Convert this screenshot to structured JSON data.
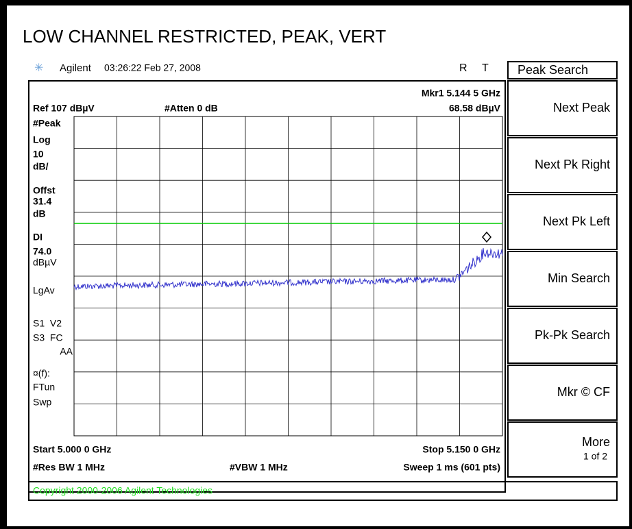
{
  "title": "LOW CHANNEL RESTRICTED, PEAK, VERT",
  "status": {
    "brand": "Agilent",
    "timestamp": "03:26:22  Feb 27, 2008",
    "r": "R",
    "t": "T"
  },
  "header": {
    "marker": "Mkr1  5.144 5 GHz",
    "ref": "Ref 107 dBµV",
    "atten": "#Atten 0 dB",
    "marker_level": "68.58 dBµV"
  },
  "side_labels": [
    "#Peak",
    "Log",
    "10",
    "dB/",
    "Offst",
    "31.4",
    "dB",
    "DI",
    "74.0",
    "dBµV",
    "LgAv",
    "S1  V2",
    "S3  FC",
    "AA",
    "¤(f):",
    "FTun",
    "Swp"
  ],
  "footer": {
    "start": "Start 5.000 0 GHz",
    "stop": "Stop 5.150 0 GHz",
    "rbw": "#Res BW 1 MHz",
    "vbw": "#VBW 1 MHz",
    "sweep": "Sweep 1 ms (601 pts)"
  },
  "softkeys": {
    "title": "Peak Search",
    "buttons": [
      {
        "label": "Next Peak"
      },
      {
        "label": "Next Pk Right"
      },
      {
        "label": "Next Pk Left"
      },
      {
        "label": "Min Search"
      },
      {
        "label": "Pk-Pk Search"
      },
      {
        "label": "Mkr © CF"
      },
      {
        "label": "More",
        "sub": "1 of 2"
      }
    ]
  },
  "copyright": "Copyright 2000-2006 Agilent Technologies"
}
